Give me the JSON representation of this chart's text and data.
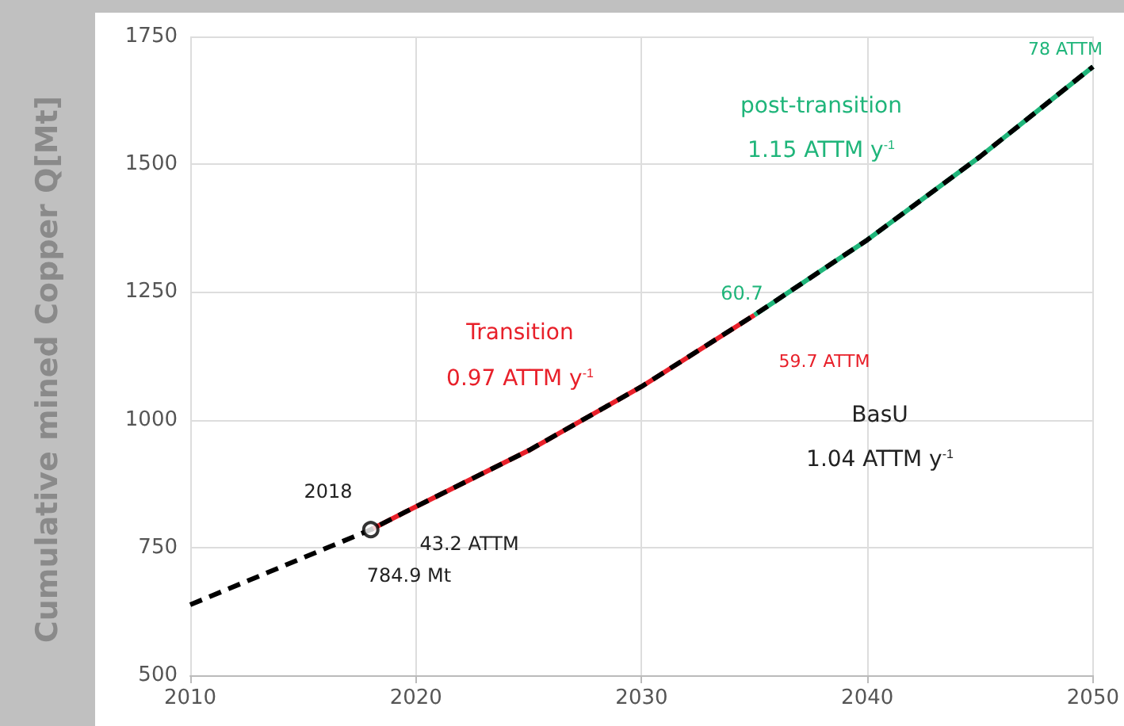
{
  "chart_data": {
    "type": "line",
    "ylabel": "Cumulative mined Copper Q[Mt]",
    "xlim": [
      2010,
      2050
    ],
    "xticks": [
      2010,
      2020,
      2030,
      2040,
      2050
    ],
    "ylim": [
      500,
      1750
    ],
    "yticks": [
      500,
      750,
      1000,
      1250,
      1500,
      1750
    ],
    "grid": true,
    "series": [
      {
        "color": "#e8202a",
        "line_style": "solid",
        "x": [
          2018,
          2020,
          2025,
          2030,
          2035
        ],
        "values": [
          785,
          830,
          940,
          1065,
          1205
        ]
      },
      {
        "color": "#1fb57a",
        "line_style": "solid",
        "x": [
          2035,
          2040,
          2045,
          2050
        ],
        "values": [
          1205,
          1352,
          1515,
          1691
        ]
      },
      {
        "color": "#000000",
        "line_style": "dashed",
        "x": [
          2010,
          2018,
          2020,
          2025,
          2030,
          2035,
          2040,
          2045,
          2050
        ],
        "values": [
          638,
          785,
          830,
          940,
          1065,
          1205,
          1352,
          1515,
          1691
        ]
      },
      {
        "type": "scatter",
        "marker": "circle",
        "color": "#000000",
        "x": [
          2018
        ],
        "values": [
          785
        ]
      }
    ],
    "annotations": [
      "2018",
      "43.2 ATTM",
      "784.9 Mt",
      "Transition",
      "0.97 ATTM y$^{-1}$",
      "post-transition",
      "1.15 ATTM y$^{-1}$",
      "60.7",
      "59.7 ATTM",
      "BasU",
      "1.04 ATTM y$^{-1}$",
      "78 ATTM"
    ]
  }
}
